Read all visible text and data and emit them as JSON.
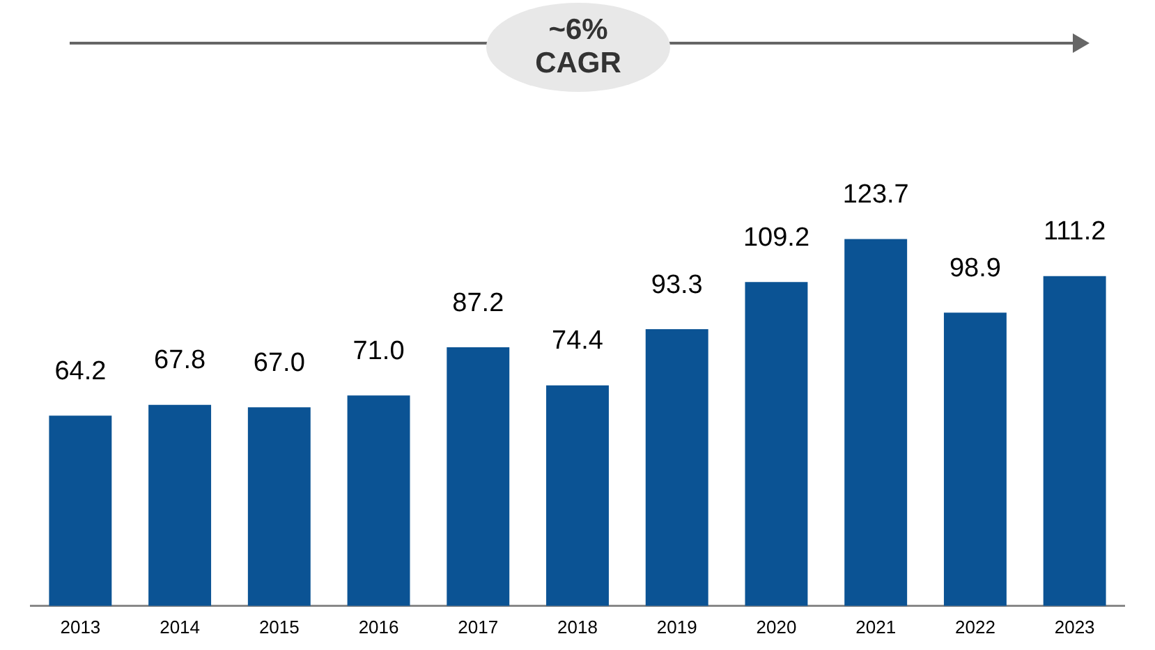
{
  "chart_data": {
    "type": "bar",
    "categories": [
      "2013",
      "2014",
      "2015",
      "2016",
      "2017",
      "2018",
      "2019",
      "2020",
      "2021",
      "2022",
      "2023"
    ],
    "values": [
      64.2,
      67.8,
      67.0,
      71.0,
      87.2,
      74.4,
      93.3,
      109.2,
      123.7,
      98.9,
      111.2
    ],
    "value_labels": [
      "64.2",
      "67.8",
      "67.0",
      "71.0",
      "87.2",
      "74.4",
      "93.3",
      "109.2",
      "123.7",
      "98.9",
      "111.2"
    ],
    "color": "#0b5394",
    "grid": false,
    "legend": false,
    "annotations": [
      "~6% CAGR"
    ]
  }
}
